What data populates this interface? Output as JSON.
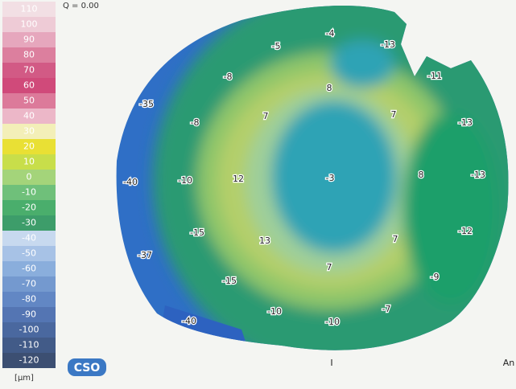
{
  "header": {
    "q": "Q = 0.00"
  },
  "scale": {
    "labels": [
      "110",
      "100",
      "90",
      "80",
      "70",
      "60",
      "50",
      "40",
      "30",
      "20",
      "10",
      "0",
      "-10",
      "-20",
      "-30",
      "-40",
      "-50",
      "-60",
      "-70",
      "-80",
      "-90",
      "-100",
      "-110",
      "-120"
    ],
    "unit": "[µm]"
  },
  "map": {
    "labels": [
      "-4",
      "-13",
      "-5",
      "-11",
      "-35",
      "-8",
      "8",
      "7",
      "7",
      "-13",
      "-8",
      "-40",
      "-10",
      "12",
      "-3",
      "8",
      "-13",
      "-15",
      "13",
      "7",
      "-12",
      "-37",
      "7",
      "-15",
      "-9",
      "-10",
      "-7",
      "-40",
      "-10"
    ]
  },
  "footer": {
    "logo": "CSO",
    "marker": "I",
    "edge": "An"
  }
}
